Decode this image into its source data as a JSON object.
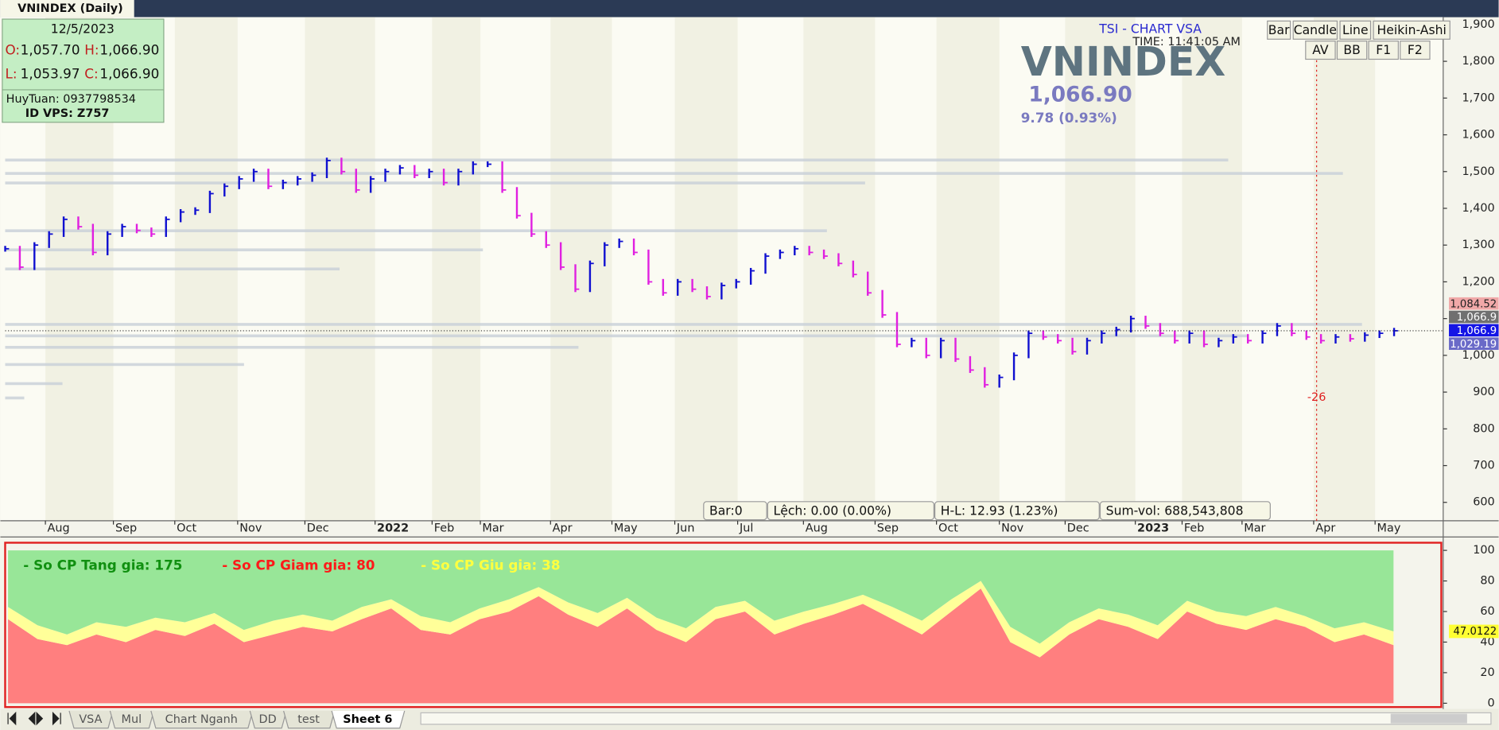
{
  "window_tab": "VNINDEX (Daily)",
  "info": {
    "date": "12/5/2023",
    "open_label": "O:",
    "open": "1,057.70",
    "high_label": "H:",
    "high": "1,066.90",
    "low_label": "L:",
    "low": "1,053.97",
    "close_label": "C:",
    "close": "1,066.90",
    "user": "HuyTuan: 0937798534",
    "id": "ID VPS: Z757"
  },
  "watermark": {
    "brand": "TSI - CHART VSA",
    "time": "TIME: 11:41:05 AM",
    "symbol": "VNINDEX",
    "price": "1,066.90",
    "change": "9.78 (0.93%)"
  },
  "buttons": {
    "row1": [
      "Bar",
      "Candle",
      "Line",
      "Heikin-Ashi"
    ],
    "row2": [
      "AV",
      "BB",
      "F1",
      "F2"
    ]
  },
  "status": [
    "Bar:0",
    "Lệch: 0.00 (0.00%)",
    "H-L: 12.93 (1.23%)",
    "Sum-vol: 688,543,808"
  ],
  "sheet_tabs": [
    "VSA",
    "Mul",
    "Chart Nganh",
    "DD",
    "test",
    "Sheet 6"
  ],
  "chart_data": [
    {
      "type": "ohlc",
      "up_color": "#1010d0",
      "down_color": "#e020e0",
      "values": [
        1290,
        1240,
        1300,
        1330,
        1370,
        1350,
        1280,
        1330,
        1350,
        1340,
        1330,
        1370,
        1390,
        1395,
        1440,
        1460,
        1480,
        1500,
        1460,
        1470,
        1480,
        1490,
        1530,
        1500,
        1450,
        1480,
        1500,
        1510,
        1490,
        1500,
        1470,
        1500,
        1520,
        1520,
        1450,
        1380,
        1330,
        1300,
        1240,
        1180,
        1250,
        1300,
        1310,
        1280,
        1200,
        1170,
        1200,
        1180,
        1160,
        1190,
        1200,
        1230,
        1270,
        1280,
        1290,
        1280,
        1270,
        1250,
        1220,
        1170,
        1110,
        1030,
        1040,
        1000,
        1040,
        990,
        960,
        920,
        940,
        1000,
        1060,
        1050,
        1040,
        1010,
        1040,
        1060,
        1070,
        1100,
        1080,
        1060,
        1040,
        1060,
        1030,
        1040,
        1050,
        1040,
        1060,
        1080,
        1060,
        1050,
        1040,
        1050,
        1045,
        1055,
        1060,
        1066.9
      ],
      "xlim": [
        -0.33,
        98.36
      ],
      "xticks": [
        {
          "value": 2.75,
          "label": "Aug"
        },
        {
          "value": 7.4,
          "label": "Sep"
        },
        {
          "value": 11.6,
          "label": "Oct"
        },
        {
          "value": 15.9,
          "label": "Nov"
        },
        {
          "value": 20.5,
          "label": "Dec"
        },
        {
          "value": 25.3,
          "label": "2022"
        },
        {
          "value": 29.2,
          "label": "Feb"
        },
        {
          "value": 32.5,
          "label": "Mar"
        },
        {
          "value": 37.3,
          "label": "Apr"
        },
        {
          "value": 41.5,
          "label": "May"
        },
        {
          "value": 45.8,
          "label": "Jun"
        },
        {
          "value": 50.1,
          "label": "Jul"
        },
        {
          "value": 54.6,
          "label": "Aug"
        },
        {
          "value": 59.5,
          "label": "Sep"
        },
        {
          "value": 63.7,
          "label": "Oct"
        },
        {
          "value": 68,
          "label": "Nov"
        },
        {
          "value": 72.5,
          "label": "Dec"
        },
        {
          "value": 77.3,
          "label": "2023"
        },
        {
          "value": 80.5,
          "label": "Feb"
        },
        {
          "value": 84.6,
          "label": "Mar"
        },
        {
          "value": 89.5,
          "label": "Apr"
        },
        {
          "value": 93.7,
          "label": "May"
        }
      ],
      "ylim": [
        550,
        1920
      ],
      "yticks": [
        600,
        700,
        800,
        900,
        {
          "value": 1000,
          "label": "1,000"
        },
        {
          "value": 1100,
          "label": "1,100"
        },
        {
          "value": 1200,
          "label": "1,200"
        },
        {
          "value": 1300,
          "label": "1,300"
        },
        {
          "value": 1400,
          "label": "1,400"
        },
        {
          "value": 1500,
          "label": "1,500"
        },
        {
          "value": 1600,
          "label": "1,600"
        },
        {
          "value": 1700,
          "label": "1,700"
        },
        {
          "value": 1800,
          "label": "1,800"
        },
        {
          "value": 1900,
          "label": "1,900"
        }
      ],
      "price_labels": [
        {
          "value": 1084.52,
          "label": "1,084.52",
          "color": "#f0a8a8"
        },
        {
          "value": 1066.9,
          "label": "1,066.9",
          "color": "#707070"
        },
        {
          "value": 1066.9,
          "label": "1,066.9",
          "color": "#1414e6"
        },
        {
          "value": 1029.19,
          "label": "1,029.19",
          "color": "#6a6ac8"
        }
      ],
      "vline": {
        "x": 89.7,
        "label": "-26",
        "color": "#e02020"
      }
    },
    {
      "type": "area",
      "ylim": [
        0,
        100
      ],
      "yticks": [
        0,
        20,
        40,
        60,
        80,
        100
      ],
      "last_label": {
        "value": 47.0122,
        "label": "47.0122"
      },
      "series": [
        {
          "name": "- So CP Giam gia: 80",
          "color": "#ff7f7f",
          "text_color": "#ff1a1a",
          "values": [
            55,
            42,
            38,
            45,
            40,
            48,
            44,
            52,
            40,
            45,
            50,
            47,
            55,
            62,
            48,
            45,
            55,
            60,
            70,
            58,
            50,
            62,
            48,
            40,
            55,
            60,
            45,
            52,
            58,
            65,
            55,
            45,
            60,
            75,
            40,
            30,
            45,
            55,
            50,
            42,
            60,
            52,
            48,
            55,
            50,
            40,
            45,
            38
          ]
        },
        {
          "name": "- So CP Giu gia: 38",
          "color": "#ffff99",
          "text_color": "#ffff40",
          "values": [
            8,
            9,
            7,
            8,
            10,
            8,
            9,
            7,
            8,
            9,
            8,
            7,
            8,
            6,
            9,
            8,
            7,
            8,
            6,
            8,
            9,
            7,
            8,
            9,
            8,
            7,
            9,
            8,
            7,
            6,
            8,
            9,
            8,
            5,
            10,
            9,
            8,
            7,
            8,
            9,
            7,
            8,
            9,
            8,
            7,
            9,
            8,
            9
          ]
        },
        {
          "name": "- So CP Tang gia: 175",
          "color": "#98e698",
          "text_color": "#109010",
          "values": [
            37,
            49,
            55,
            47,
            50,
            44,
            47,
            41,
            52,
            46,
            42,
            46,
            37,
            32,
            43,
            47,
            38,
            32,
            24,
            34,
            41,
            31,
            44,
            51,
            37,
            33,
            46,
            40,
            35,
            29,
            37,
            46,
            32,
            20,
            50,
            61,
            47,
            38,
            42,
            49,
            33,
            40,
            43,
            37,
            43,
            51,
            47,
            53
          ]
        }
      ]
    }
  ]
}
